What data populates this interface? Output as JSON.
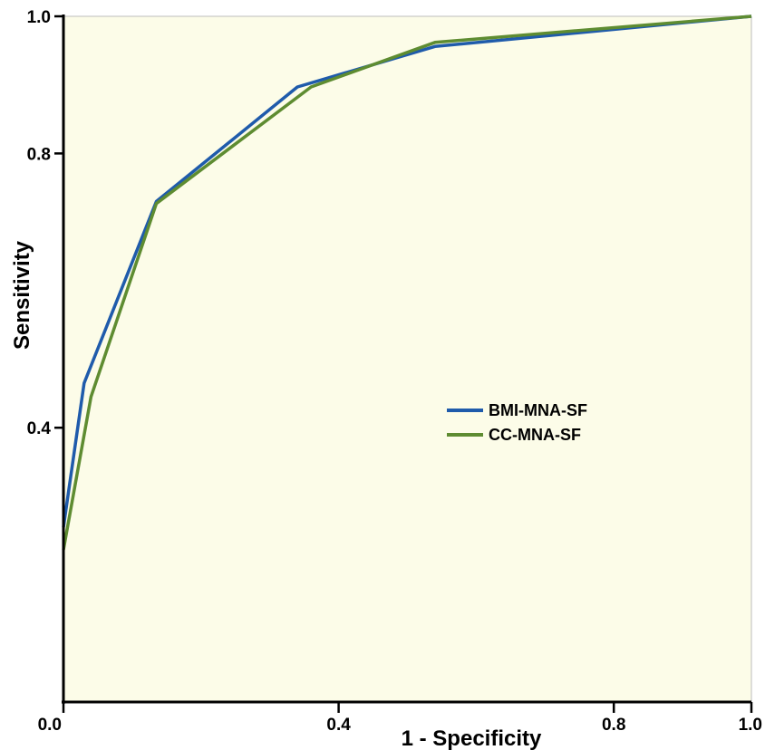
{
  "colors": {
    "plot_background": "#fcfce8",
    "grid": "#bdbdbd",
    "axis": "#000000",
    "bmi_series": "#1f5bab",
    "cc_series": "#5e8c31"
  },
  "chart_data": {
    "type": "line",
    "title": "",
    "xlabel": "1 - Specificity",
    "ylabel": "Sensitivity",
    "xlim": [
      0,
      1
    ],
    "ylim": [
      0,
      1
    ],
    "x_ticks": [
      {
        "value": 0.0,
        "label": "0.0"
      },
      {
        "value": 0.4,
        "label": "0.4"
      },
      {
        "value": 0.8,
        "label": "0.8"
      },
      {
        "value": 1.0,
        "label": "1.0"
      }
    ],
    "y_ticks": [
      {
        "value": 0.4,
        "label": "0.4"
      },
      {
        "value": 0.8,
        "label": "0.8"
      },
      {
        "value": 1.0,
        "label": "1.0"
      }
    ],
    "grid": false,
    "legend_position": "center-right",
    "series": [
      {
        "name": "BMI-MNA-SF",
        "color": "#1f5bab",
        "points": [
          {
            "x": 0.0,
            "y": 0.255
          },
          {
            "x": 0.03,
            "y": 0.465
          },
          {
            "x": 0.135,
            "y": 0.73
          },
          {
            "x": 0.34,
            "y": 0.897
          },
          {
            "x": 0.54,
            "y": 0.956
          },
          {
            "x": 1.0,
            "y": 1.0
          }
        ]
      },
      {
        "name": "CC-MNA-SF",
        "color": "#5e8c31",
        "points": [
          {
            "x": 0.0,
            "y": 0.222
          },
          {
            "x": 0.04,
            "y": 0.445
          },
          {
            "x": 0.135,
            "y": 0.727
          },
          {
            "x": 0.36,
            "y": 0.897
          },
          {
            "x": 0.54,
            "y": 0.962
          },
          {
            "x": 1.0,
            "y": 1.0
          }
        ]
      }
    ]
  }
}
